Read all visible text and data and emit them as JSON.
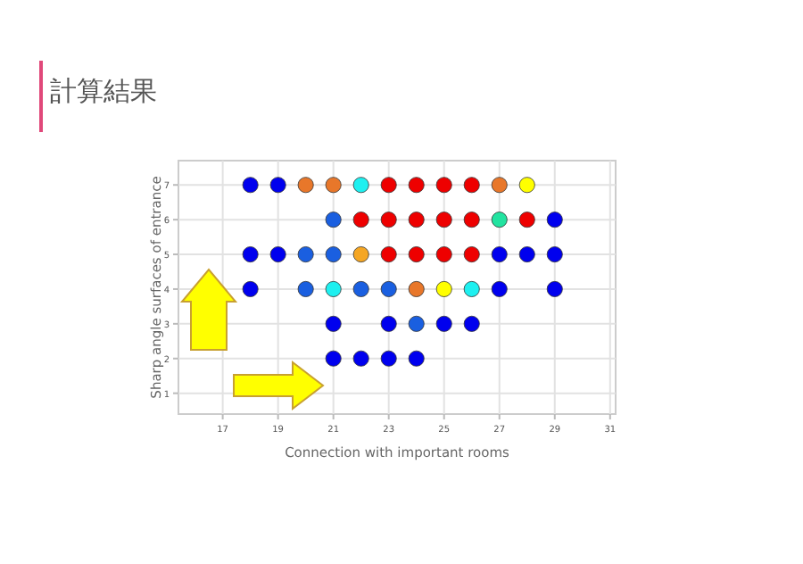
{
  "chart_data": {
    "type": "scatter",
    "title": "計算結果",
    "xlabel": "Connection with important rooms",
    "ylabel": "Sharp angle surfaces of entrance",
    "x": [
      18,
      19,
      20,
      21,
      22,
      23,
      24,
      25,
      26,
      27,
      28,
      21,
      22,
      23,
      24,
      25,
      26,
      27,
      28,
      29,
      18,
      19,
      20,
      21,
      22,
      23,
      24,
      25,
      26,
      27,
      28,
      29,
      18,
      20,
      21,
      22,
      23,
      24,
      25,
      26,
      27,
      29,
      21,
      23,
      24,
      25,
      26,
      21,
      22,
      23,
      24
    ],
    "values": [
      7,
      7,
      7,
      7,
      7,
      7,
      7,
      7,
      7,
      7,
      7,
      6,
      6,
      6,
      6,
      6,
      6,
      6,
      6,
      6,
      5,
      5,
      5,
      5,
      5,
      5,
      5,
      5,
      5,
      5,
      5,
      5,
      4,
      4,
      4,
      4,
      4,
      4,
      4,
      4,
      4,
      4,
      3,
      3,
      3,
      3,
      3,
      2,
      2,
      2,
      2
    ],
    "colors": [
      "#0000ee",
      "#0000ee",
      "#e8772a",
      "#e8772a",
      "#1ef0f0",
      "#ee0000",
      "#ee0000",
      "#ee0000",
      "#ee0000",
      "#e8772a",
      "#ffff00",
      "#1a5fe0",
      "#ee0000",
      "#ee0000",
      "#ee0000",
      "#ee0000",
      "#ee0000",
      "#22e3a0",
      "#ee0000",
      "#0000ee",
      "#0000ee",
      "#0000ee",
      "#1a5fe0",
      "#1a5fe0",
      "#f5a623",
      "#ee0000",
      "#ee0000",
      "#ee0000",
      "#ee0000",
      "#0000ee",
      "#0000ee",
      "#0000ee",
      "#0000ee",
      "#1a5fe0",
      "#1ef0f0",
      "#1a5fe0",
      "#1a5fe0",
      "#e8772a",
      "#ffff00",
      "#1ef0f0",
      "#0000ee",
      "#0000ee",
      "#0000ee",
      "#0000ee",
      "#1a5fe0",
      "#0000ee",
      "#0000ee",
      "#0000ee",
      "#0000ee",
      "#0000ee",
      "#0000ee"
    ],
    "xlim": [
      15.4,
      31.2
    ],
    "ylim": [
      0.4,
      7.7
    ],
    "xticks": [
      17,
      19,
      21,
      23,
      25,
      27,
      29,
      31
    ],
    "yticks": [
      1,
      2,
      3,
      4,
      5,
      6,
      7
    ],
    "grid": true,
    "marker": "circle"
  }
}
